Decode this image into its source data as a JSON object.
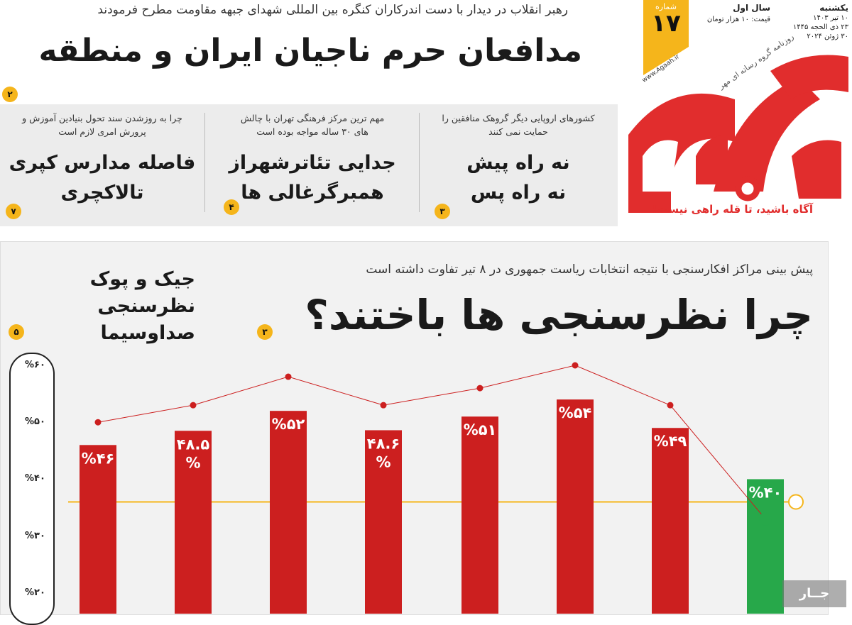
{
  "masthead": {
    "day": "یکشنبه",
    "year_label": "سال اول",
    "date_shamsi": "۱۰ تیر ۱۴۰۳",
    "date_hijri": "۲۳ ذی الحجه ۱۴۴۵",
    "date_gregorian": "۳۰ ژوئن ۲۰۲۴",
    "price": "قیمت: ۱۰ هزار تومان",
    "issue_label": "شماره",
    "issue_number": "۱۷",
    "logo_text": "آگاه",
    "subtitle": "روزنامه گروه رسانه ای مهر",
    "website": "www.Agaah.ir",
    "tagline": "آگاه باشید، تا قله راهی نیست!",
    "logo_color": "#e12d2d",
    "accent_color": "#f5b51b"
  },
  "lead": {
    "kicker": "رهبر انقلاب در دیدار با دست اندرکاران کنگره بین المللی شهدای جبهه مقاومت مطرح فرمودند",
    "title": "مدافعان حرم ناجیان ایران و منطقه",
    "page_badge": "۲"
  },
  "teasers": [
    {
      "sub": "کشورهای اروپایی دیگر گروهک منافقین را حمایت نمی کنند",
      "head1": "نه راه پیش",
      "head2": "نه راه پس",
      "page": "۳"
    },
    {
      "sub": "مهم ترین مرکز فرهنگی تهران با چالش های ۳۰ ساله مواجه بوده است",
      "head1": "جدایی تئاترشهراز",
      "head2": "همبرگرغالی ها",
      "page": "۴"
    },
    {
      "sub": "چرا به روزشدن سند تحول بنیادین آموزش و پرورش امری لازم است",
      "head1": "فاصله مدارس کپری",
      "head2": "تالاکچری",
      "page": "۷"
    }
  ],
  "infographic": {
    "kicker": "پیش بینی مراکز افکارسنجی با نتیجه انتخابات ریاست جمهوری در ۸ تیر تفاوت داشته است",
    "title": "چرا نظرسنجی ها باختند؟",
    "title_badge": "۳",
    "side_title_1": "جیک و پوک",
    "side_title_2": "نظرسنجی صداوسیما",
    "side_badge": "۵"
  },
  "chart_data": {
    "type": "bar",
    "ylim": [
      15,
      60
    ],
    "y_ticks": [
      "%۶۰",
      "%۵۰",
      "%۴۰",
      "%۳۰",
      "%۲۰"
    ],
    "y_tick_values": [
      60,
      50,
      40,
      30,
      20
    ],
    "bar_labels": [
      "%۴۶",
      "۴۸.۵ %",
      "%۵۲",
      "۴۸.۶ %",
      "%۵۱",
      "%۵۴",
      "%۴۹",
      "%۴۰"
    ],
    "values": [
      46,
      48.5,
      52,
      48.6,
      51,
      54,
      49,
      40
    ],
    "trend_points": [
      50,
      53,
      58,
      53,
      56,
      60,
      53,
      33
    ],
    "reference_line": 36,
    "bar_color": "#cc1f1f",
    "last_bar_color": "#27a84a",
    "line_color": "#cc1f1f",
    "ref_color": "#f5b51b"
  },
  "watermark": "جــار"
}
